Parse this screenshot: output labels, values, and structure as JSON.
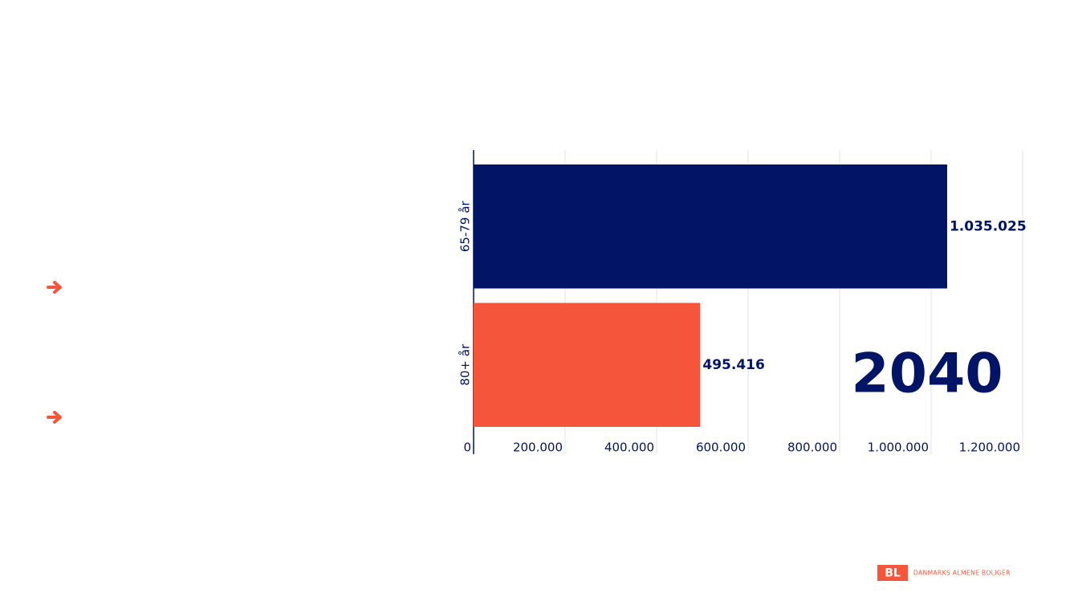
{
  "chart_data": {
    "type": "bar",
    "orientation": "horizontal",
    "categories": [
      "65-79 år",
      "80+ år"
    ],
    "values": [
      1035025,
      495416
    ],
    "value_labels": [
      "1.035.025",
      "495.416"
    ],
    "colors": [
      "#021466",
      "#f5553b"
    ],
    "xlim": [
      0,
      1200000
    ],
    "xticks": [
      0,
      {
        "value": 200000,
        "label": "200.000"
      },
      {
        "value": 400000,
        "label": "400.000"
      },
      {
        "value": 600000,
        "label": "600.000"
      },
      {
        "value": 800000,
        "label": "800.000"
      },
      {
        "value": 1000000,
        "label": "1.000.000"
      },
      {
        "value": 1200000,
        "label": "1.200.000"
      }
    ],
    "grid": true,
    "annotation": "2040"
  },
  "logo": {
    "mark": "BL",
    "text": "DANMARKS ALMENE BOLIGER"
  }
}
